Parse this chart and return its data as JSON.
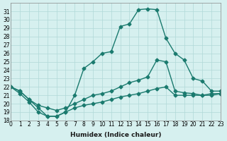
{
  "xlabel": "Humidex (Indice chaleur)",
  "bg_color": "#d6f0ef",
  "grid_color": "#b0d8d8",
  "line_color": "#1a7a6e",
  "ylim": [
    18,
    32
  ],
  "xlim": [
    0,
    23
  ],
  "yticks": [
    18,
    19,
    20,
    21,
    22,
    23,
    24,
    25,
    26,
    27,
    28,
    29,
    30,
    31
  ],
  "xticks": [
    0,
    1,
    2,
    3,
    4,
    5,
    6,
    7,
    8,
    9,
    10,
    11,
    12,
    13,
    14,
    15,
    16,
    17,
    18,
    19,
    20,
    21,
    22,
    23
  ],
  "main_x": [
    0,
    1,
    2,
    3,
    4,
    5,
    6,
    7,
    8,
    9,
    10,
    11,
    12,
    13,
    14,
    15,
    16,
    17,
    18,
    19,
    20,
    21,
    22,
    23
  ],
  "main_y": [
    22,
    21.5,
    20.5,
    19.5,
    18.5,
    18.5,
    19.0,
    21.0,
    24.2,
    25.0,
    26.0,
    26.2,
    29.2,
    29.5,
    31.2,
    31.3,
    31.2,
    27.8,
    26.0,
    25.2,
    23.0,
    22.7,
    21.5,
    21.5
  ],
  "curve2_x": [
    0,
    1,
    2,
    3,
    4,
    5,
    6,
    7,
    8,
    9,
    10,
    11,
    12,
    13,
    14,
    15,
    16,
    17,
    18,
    19,
    20,
    21,
    22,
    23
  ],
  "curve2_y": [
    22.0,
    21.5,
    20.5,
    19.8,
    19.5,
    19.2,
    19.5,
    20.0,
    20.5,
    21.0,
    21.2,
    21.5,
    22.0,
    22.5,
    22.8,
    23.2,
    25.2,
    25.0,
    21.5,
    21.3,
    21.2,
    21.0,
    21.2,
    21.2
  ],
  "curve3_x": [
    0,
    1,
    2,
    3,
    4,
    5,
    6,
    7,
    8,
    9,
    10,
    11,
    12,
    13,
    14,
    15,
    16,
    17,
    18,
    19,
    20,
    21,
    22,
    23
  ],
  "curve3_y": [
    22.0,
    21.2,
    20.2,
    19.0,
    18.5,
    18.5,
    19.0,
    19.5,
    19.8,
    20.0,
    20.2,
    20.5,
    20.8,
    21.0,
    21.2,
    21.5,
    21.8,
    22.0,
    21.0,
    21.0,
    21.0,
    21.0,
    21.0,
    21.2
  ]
}
